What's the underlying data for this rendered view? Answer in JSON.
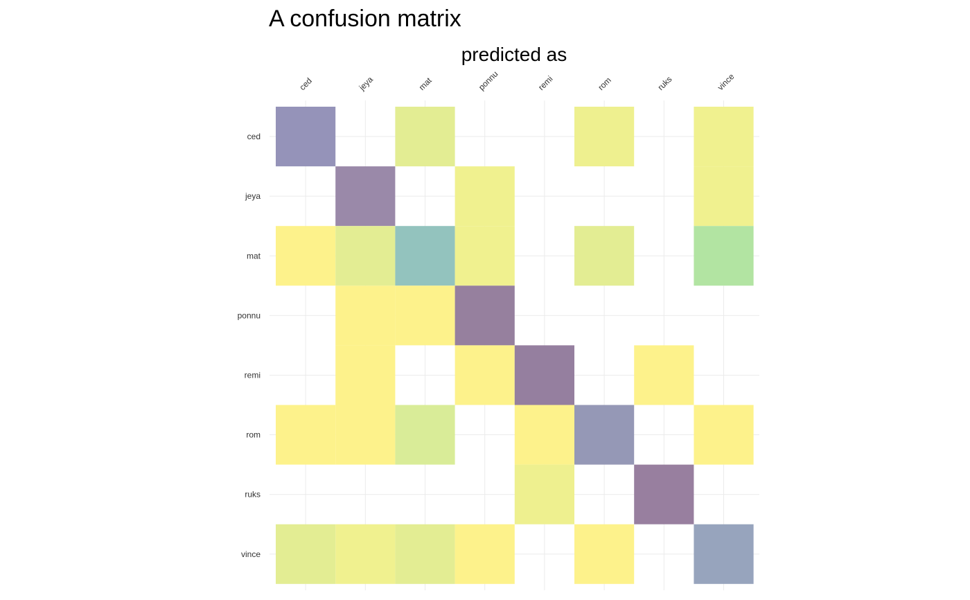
{
  "chart_data": {
    "type": "heatmap",
    "title": "A confusion matrix",
    "xlabel": "predicted as",
    "ylabel": "",
    "x_categories": [
      "ced",
      "jeya",
      "mat",
      "ponnu",
      "remi",
      "rom",
      "ruks",
      "vince"
    ],
    "y_categories": [
      "ced",
      "jeya",
      "mat",
      "ponnu",
      "remi",
      "rom",
      "ruks",
      "vince"
    ],
    "cells": [
      {
        "actual": "ced",
        "predicted": "ced",
        "color": "#9593b9"
      },
      {
        "actual": "ced",
        "predicted": "mat",
        "color": "#e3ed93"
      },
      {
        "actual": "ced",
        "predicted": "rom",
        "color": "#eef08f"
      },
      {
        "actual": "ced",
        "predicted": "vince",
        "color": "#f0f18f"
      },
      {
        "actual": "jeya",
        "predicted": "jeya",
        "color": "#9a89a9"
      },
      {
        "actual": "jeya",
        "predicted": "ponnu",
        "color": "#f0f18f"
      },
      {
        "actual": "jeya",
        "predicted": "vince",
        "color": "#f0f18f"
      },
      {
        "actual": "mat",
        "predicted": "ced",
        "color": "#fdf28b"
      },
      {
        "actual": "mat",
        "predicted": "jeya",
        "color": "#e3ed93"
      },
      {
        "actual": "mat",
        "predicted": "mat",
        "color": "#93c3be"
      },
      {
        "actual": "mat",
        "predicted": "ponnu",
        "color": "#f0f18f"
      },
      {
        "actual": "mat",
        "predicted": "rom",
        "color": "#e3ed93"
      },
      {
        "actual": "mat",
        "predicted": "vince",
        "color": "#b2e4a2"
      },
      {
        "actual": "ponnu",
        "predicted": "jeya",
        "color": "#fdf28b"
      },
      {
        "actual": "ponnu",
        "predicted": "mat",
        "color": "#fdf28b"
      },
      {
        "actual": "ponnu",
        "predicted": "ponnu",
        "color": "#96809e"
      },
      {
        "actual": "remi",
        "predicted": "jeya",
        "color": "#fdf28b"
      },
      {
        "actual": "remi",
        "predicted": "ponnu",
        "color": "#fdf28b"
      },
      {
        "actual": "remi",
        "predicted": "remi",
        "color": "#957f9f"
      },
      {
        "actual": "remi",
        "predicted": "ruks",
        "color": "#fdf28b"
      },
      {
        "actual": "rom",
        "predicted": "ced",
        "color": "#fdf28b"
      },
      {
        "actual": "rom",
        "predicted": "jeya",
        "color": "#fdf28b"
      },
      {
        "actual": "rom",
        "predicted": "mat",
        "color": "#d9ec98"
      },
      {
        "actual": "rom",
        "predicted": "remi",
        "color": "#fdf28b"
      },
      {
        "actual": "rom",
        "predicted": "rom",
        "color": "#9598b6"
      },
      {
        "actual": "rom",
        "predicted": "vince",
        "color": "#fdf28b"
      },
      {
        "actual": "ruks",
        "predicted": "remi",
        "color": "#eef08f"
      },
      {
        "actual": "ruks",
        "predicted": "ruks",
        "color": "#987f9f"
      },
      {
        "actual": "vince",
        "predicted": "ced",
        "color": "#e3ed93"
      },
      {
        "actual": "vince",
        "predicted": "jeya",
        "color": "#f0f18f"
      },
      {
        "actual": "vince",
        "predicted": "mat",
        "color": "#e3ed93"
      },
      {
        "actual": "vince",
        "predicted": "ponnu",
        "color": "#fdf28b"
      },
      {
        "actual": "vince",
        "predicted": "rom",
        "color": "#fdf28b"
      },
      {
        "actual": "vince",
        "predicted": "vince",
        "color": "#97a4bd"
      }
    ],
    "grid": true,
    "legend": "none"
  },
  "colors": {
    "grid": "#ebebeb",
    "tick_text": "#333333",
    "title_text": "#000000"
  }
}
